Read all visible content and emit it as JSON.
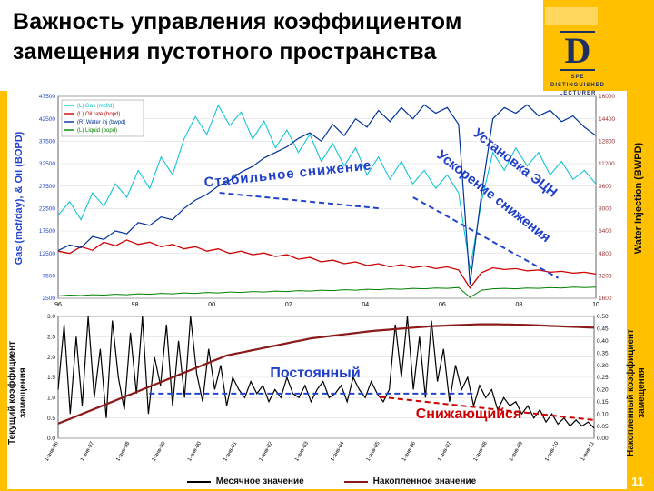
{
  "slide": {
    "title": "Важность управления коэффициентом\nзамещения пустотного пространства",
    "page_number": "11",
    "logo": {
      "letter": "D",
      "caption": "SPE DISTINGUISHED\nLECTURER"
    },
    "colors": {
      "background": "#FFC000",
      "accent_box": "#FFD75E",
      "annotation_blue": "#1F3FC8",
      "annotation_red": "#CC0000"
    }
  },
  "chart_data": [
    {
      "type": "line",
      "left_axis": {
        "label": "Gas (mcf/day), & Oil (BOPD)",
        "min": 2500,
        "max": 47500,
        "color": "#2244CC",
        "ticks": [
          "47500",
          "42500",
          "37500",
          "32500",
          "27500",
          "22500",
          "17500",
          "12500",
          "7500",
          "2500"
        ]
      },
      "right_axis": {
        "label": "Water Injection (BWPD)",
        "min": 1600,
        "max": 16000,
        "color": "#993333",
        "ticks": [
          "16000",
          "14400",
          "12800",
          "11200",
          "9600",
          "8000",
          "6400",
          "4800",
          "3200",
          "1600"
        ]
      },
      "x_ticks": [
        "96",
        "98",
        "00",
        "02",
        "04",
        "06",
        "08",
        "10"
      ],
      "x_rotate": false,
      "legend": [
        {
          "label": "(L) Gas (mcf/d)",
          "color": "#00C0D0"
        },
        {
          "label": "(L) Oil rate (bopd)",
          "color": "#CC0000"
        },
        {
          "label": "(R) Water inj (bwpd)",
          "color": "#003399"
        },
        {
          "label": "(L) Liquid (bopd)",
          "color": "#008000"
        }
      ],
      "series": [
        {
          "name": "gas",
          "axis": "left",
          "color": "#00C0D0",
          "width": 1,
          "values": [
            21000,
            24000,
            20000,
            26000,
            23000,
            28000,
            25000,
            31000,
            27000,
            34000,
            30000,
            38000,
            43000,
            39000,
            45500,
            41000,
            44000,
            38000,
            42000,
            36000,
            40000,
            35000,
            39000,
            33000,
            37000,
            32000,
            36000,
            30000,
            34000,
            29000,
            33000,
            28000,
            31000,
            27000,
            30000,
            26000,
            9000,
            24000,
            35000,
            31000,
            36000,
            32000,
            35000,
            30000,
            33000,
            29000,
            31000,
            28000
          ]
        },
        {
          "name": "oil",
          "axis": "left",
          "color": "#CC0000",
          "width": 1.3,
          "values": [
            13000,
            12500,
            14000,
            13200,
            15000,
            14200,
            15500,
            14500,
            15000,
            14000,
            14500,
            13500,
            14000,
            13000,
            13500,
            12500,
            13000,
            12200,
            12600,
            11800,
            12200,
            11200,
            11600,
            10600,
            11000,
            10200,
            10600,
            9800,
            10200,
            9500,
            10000,
            9300,
            9700,
            9100,
            9500,
            8800,
            4800,
            8200,
            9300,
            8900,
            9100,
            8600,
            8800,
            8300,
            8500,
            8100,
            8300,
            7900
          ]
        },
        {
          "name": "water-injection",
          "axis": "right",
          "color": "#003399",
          "width": 1.2,
          "values": [
            5000,
            5400,
            5200,
            6000,
            5800,
            6400,
            6200,
            7000,
            6800,
            7400,
            7200,
            8000,
            8600,
            9000,
            9600,
            10000,
            10600,
            11000,
            11600,
            12000,
            12400,
            13000,
            13400,
            12800,
            14000,
            13200,
            14400,
            13800,
            15000,
            14200,
            15200,
            14400,
            15400,
            14800,
            15200,
            14000,
            2600,
            9000,
            14400,
            15200,
            14800,
            15400,
            14600,
            15000,
            14200,
            14600,
            13800,
            13200
          ]
        },
        {
          "name": "liquid",
          "axis": "left",
          "color": "#008000",
          "width": 1,
          "values": [
            3000,
            3200,
            3100,
            3300,
            3200,
            3400,
            3300,
            3500,
            3400,
            3600,
            3500,
            3700,
            3600,
            3800,
            3700,
            3900,
            3800,
            4000,
            3900,
            4100,
            4000,
            4200,
            4100,
            4300,
            4200,
            4400,
            4300,
            4500,
            4400,
            4600,
            4500,
            4700,
            4600,
            4800,
            4700,
            4900,
            2700,
            4300,
            4600,
            4700,
            4600,
            4800,
            4700,
            4900,
            4800,
            5000,
            4900,
            5000
          ]
        }
      ],
      "guides": [
        {
          "axis": "left",
          "pts": [
            [
              0.3,
              26000
            ],
            [
              0.6,
              22500
            ]
          ],
          "color": "#2244CC",
          "dash": "6,4",
          "width": 2
        },
        {
          "axis": "left",
          "pts": [
            [
              0.66,
              25000
            ],
            [
              0.93,
              7000
            ]
          ],
          "color": "#2244CC",
          "dash": "6,4",
          "width": 2
        }
      ],
      "annotations": {
        "stable": "Стабильное снижение",
        "esp_line1": "Установка ЭЦН",
        "esp_line2": "Ускорение снижения"
      }
    },
    {
      "type": "line",
      "left_axis": {
        "label": "Текущий коэффициент\nзамещения",
        "min": 0,
        "max": 3.0,
        "color": "#111111",
        "ticks": [
          "3.0",
          "2.5",
          "2.0",
          "1.5",
          "1.0",
          "0.5",
          "0.0"
        ]
      },
      "right_axis": {
        "label": "Накопленный коэффициент\nзамещения",
        "min": 0,
        "max": 0.5,
        "color": "#111111",
        "ticks": [
          "0.50",
          "0.45",
          "0.40",
          "0.35",
          "0.30",
          "0.25",
          "0.20",
          "0.15",
          "0.10",
          "0.05",
          "0.00"
        ]
      },
      "x_ticks": [
        "1-янв-96",
        "1-янв-97",
        "1-янв-98",
        "1-янв-99",
        "1-янв-00",
        "1-янв-01",
        "1-янв-02",
        "1-янв-03",
        "1-янв-04",
        "1-янв-05",
        "1-янв-06",
        "1-янв-07",
        "1-янв-08",
        "1-янв-09",
        "1-янв-10",
        "1-янв-11"
      ],
      "x_rotate": true,
      "legend_bottom": [
        {
          "label": "Месячное значение",
          "color": "#000000"
        },
        {
          "label": "Накопленное значение",
          "color": "#8B1A1A"
        }
      ],
      "series": [
        {
          "name": "monthly-ratio",
          "axis": "left",
          "color": "#000000",
          "width": 1.2,
          "values": [
            1.2,
            2.8,
            0.6,
            2.5,
            0.8,
            3.0,
            1.0,
            2.2,
            0.5,
            2.9,
            1.5,
            0.7,
            2.6,
            1.1,
            3.0,
            0.6,
            2.0,
            1.3,
            2.8,
            0.8,
            2.4,
            1.0,
            3.0,
            1.6,
            0.9,
            2.2,
            1.2,
            1.8,
            0.8,
            1.5,
            1.2,
            1.0,
            1.4,
            1.1,
            1.3,
            0.9,
            1.2,
            1.0,
            1.5,
            1.1,
            1.0,
            1.3,
            0.9,
            1.2,
            1.4,
            1.0,
            1.1,
            1.3,
            0.9,
            1.5,
            1.2,
            1.0,
            1.4,
            1.1,
            0.9,
            1.2,
            2.8,
            1.5,
            3.0,
            1.2,
            2.5,
            1.0,
            2.9,
            1.4,
            2.2,
            0.9,
            1.8,
            1.2,
            1.5,
            0.8,
            1.3,
            1.0,
            1.2,
            0.7,
            1.0,
            0.8,
            0.9,
            0.6,
            0.8,
            0.5,
            0.7,
            0.4,
            0.6,
            0.35,
            0.5,
            0.3,
            0.45,
            0.3,
            0.4,
            0.25
          ]
        },
        {
          "name": "cumulative-ratio",
          "axis": "right",
          "color": "#8B1A1A",
          "width": 2.2,
          "values": [
            0.06,
            0.07,
            0.08,
            0.09,
            0.1,
            0.11,
            0.12,
            0.13,
            0.14,
            0.15,
            0.16,
            0.17,
            0.18,
            0.19,
            0.2,
            0.21,
            0.22,
            0.23,
            0.24,
            0.25,
            0.26,
            0.27,
            0.28,
            0.29,
            0.3,
            0.31,
            0.32,
            0.33,
            0.34,
            0.345,
            0.35,
            0.355,
            0.36,
            0.365,
            0.37,
            0.375,
            0.38,
            0.385,
            0.39,
            0.395,
            0.4,
            0.405,
            0.41,
            0.413,
            0.416,
            0.419,
            0.422,
            0.425,
            0.428,
            0.431,
            0.434,
            0.437,
            0.44,
            0.442,
            0.444,
            0.446,
            0.448,
            0.45,
            0.452,
            0.454,
            0.456,
            0.458,
            0.46,
            0.461,
            0.462,
            0.463,
            0.464,
            0.465,
            0.466,
            0.467,
            0.468,
            0.468,
            0.468,
            0.468,
            0.467,
            0.467,
            0.466,
            0.466,
            0.465,
            0.464,
            0.463,
            0.462,
            0.461,
            0.46,
            0.459,
            0.458,
            0.457,
            0.456,
            0.455,
            0.454
          ]
        }
      ],
      "guides": [
        {
          "axis": "left",
          "pts": [
            [
              0.17,
              1.1
            ],
            [
              0.78,
              1.1
            ]
          ],
          "color": "#2244CC",
          "dash": "6,4",
          "width": 2
        },
        {
          "axis": "left",
          "pts": [
            [
              0.6,
              1.02
            ],
            [
              1.0,
              0.45
            ]
          ],
          "color": "#CC0000",
          "dash": "6,4",
          "width": 2
        }
      ],
      "annotations": {
        "constant": "Постоянный",
        "declining": "Снижающийся"
      }
    }
  ]
}
